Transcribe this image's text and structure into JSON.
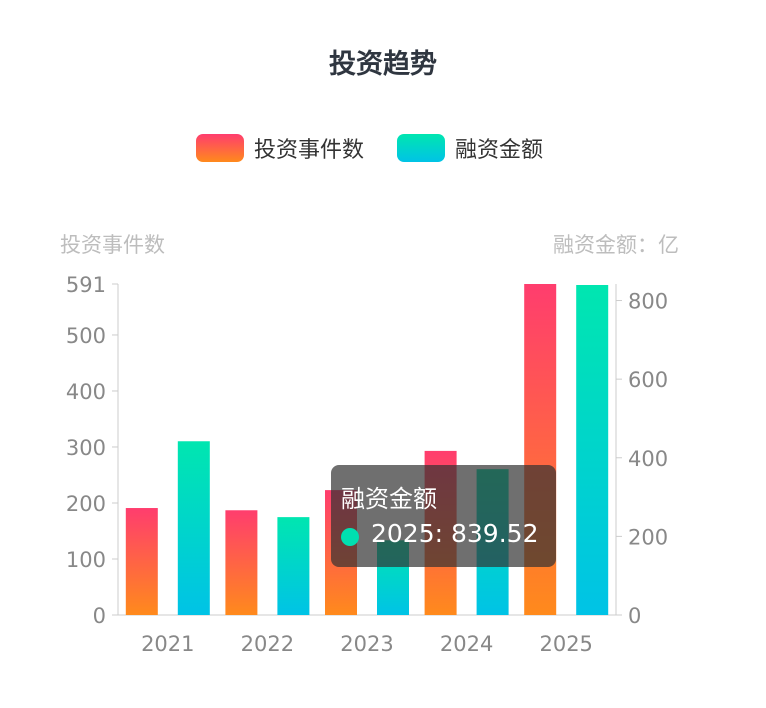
{
  "chart_data": {
    "type": "bar",
    "title": "投资趋势",
    "categories": [
      "2021",
      "2022",
      "2023",
      "2024",
      "2025"
    ],
    "series": [
      {
        "name": "投资事件数",
        "axis": "left",
        "values": [
          191,
          187,
          223,
          293,
          591
        ],
        "colors": [
          "#ff3d6e",
          "#ff8a1c"
        ]
      },
      {
        "name": "融资金额",
        "axis": "right",
        "values": [
          442,
          249,
          190,
          371,
          839.52
        ],
        "colors": [
          "#00e6b0",
          "#00c3e6"
        ]
      }
    ],
    "left_axis": {
      "label": "投资事件数",
      "ticks": [
        "0",
        "100",
        "200",
        "300",
        "400",
        "500",
        "591"
      ],
      "range": [
        0,
        591
      ]
    },
    "right_axis": {
      "label": "融资金额：亿",
      "ticks": [
        "0",
        "200",
        "400",
        "600",
        "800"
      ],
      "range": [
        0,
        839.52
      ]
    },
    "legend_position": "top",
    "grid": false
  },
  "tooltip": {
    "title": "融资金额",
    "value": "2025: 839.52",
    "dot_color": "#00e0b0"
  }
}
